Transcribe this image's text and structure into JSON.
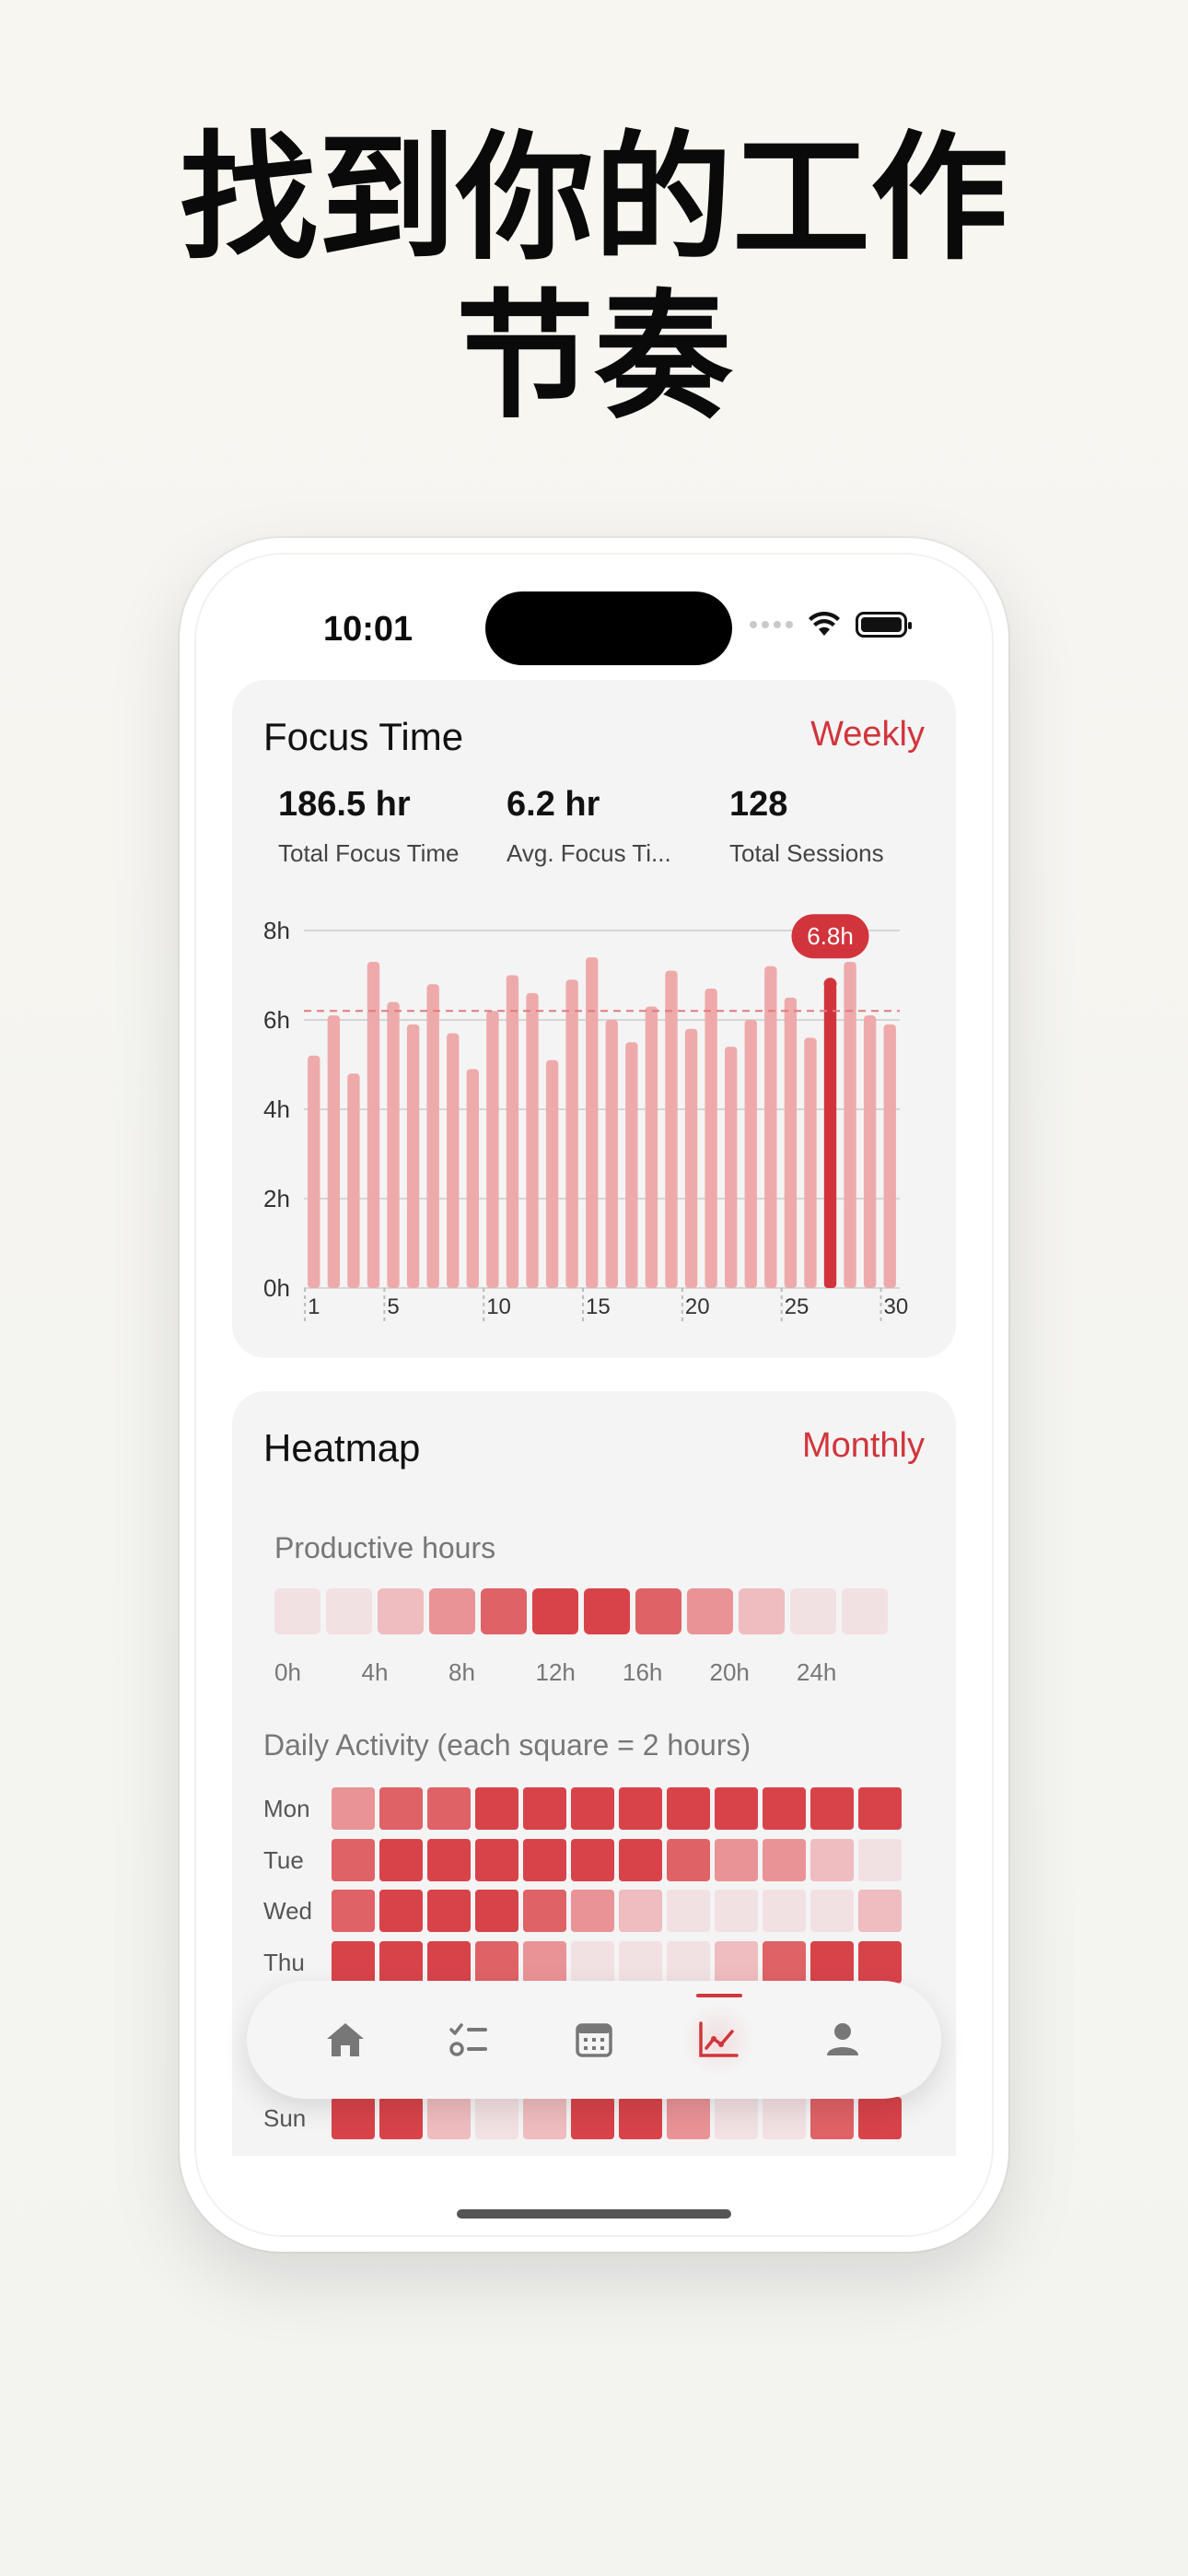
{
  "headline": {
    "line1": "找到你的工作",
    "line2": "节奏"
  },
  "status_bar": {
    "time": "10:01"
  },
  "focus_card": {
    "title": "Focus Time",
    "period": "Weekly",
    "stats": [
      {
        "value": "186.5 hr",
        "label": "Total Focus Time"
      },
      {
        "value": "6.2 hr",
        "label": "Avg. Focus Ti..."
      },
      {
        "value": "128",
        "label": "Total Sessions"
      }
    ],
    "highlight_label": "6.8h",
    "colors": {
      "accent": "#d2343c",
      "bar": "#eeaaaa"
    }
  },
  "chart_data": {
    "type": "bar",
    "x": [
      1,
      2,
      3,
      4,
      5,
      6,
      7,
      8,
      9,
      10,
      11,
      12,
      13,
      14,
      15,
      16,
      17,
      18,
      19,
      20,
      21,
      22,
      23,
      24,
      25,
      26,
      27,
      28,
      29,
      30
    ],
    "values": [
      5.2,
      6.1,
      4.8,
      7.3,
      6.4,
      5.9,
      6.8,
      5.7,
      4.9,
      6.2,
      7.0,
      6.6,
      5.1,
      6.9,
      7.4,
      6.0,
      5.5,
      6.3,
      7.1,
      5.8,
      6.7,
      5.4,
      6.0,
      7.2,
      6.5,
      5.6,
      6.8,
      7.3,
      6.1,
      5.9
    ],
    "highlight_index": 26,
    "average": 6.2,
    "x_tick_labels": [
      "1",
      "5",
      "10",
      "15",
      "20",
      "25",
      "30"
    ],
    "y_tick_labels": [
      "0h",
      "2h",
      "4h",
      "6h",
      "8h"
    ],
    "ylim": [
      0,
      8
    ],
    "grid": true
  },
  "heatmap_card": {
    "title": "Heatmap",
    "period": "Monthly",
    "productive_title": "Productive hours",
    "productive_levels": [
      1,
      1,
      2,
      3,
      4,
      5,
      5,
      4,
      3,
      2,
      1,
      1
    ],
    "productive_labels": [
      "0h",
      "4h",
      "8h",
      "12h",
      "16h",
      "20h",
      "24h"
    ],
    "daily_title": "Daily Activity (each square = 2 hours)",
    "days": [
      {
        "day": "Mon",
        "levels": [
          3,
          4,
          4,
          5,
          5,
          5,
          5,
          5,
          5,
          5,
          5,
          5
        ]
      },
      {
        "day": "Tue",
        "levels": [
          4,
          5,
          5,
          5,
          5,
          5,
          5,
          4,
          3,
          3,
          2,
          1
        ]
      },
      {
        "day": "Wed",
        "levels": [
          4,
          5,
          5,
          5,
          4,
          3,
          2,
          1,
          1,
          1,
          1,
          2
        ]
      },
      {
        "day": "Thu",
        "levels": [
          5,
          5,
          5,
          4,
          3,
          1,
          1,
          1,
          2,
          4,
          5,
          5
        ]
      },
      {
        "day": "Sun",
        "levels": [
          5,
          5,
          2,
          1,
          2,
          5,
          5,
          3,
          1,
          1,
          4,
          5
        ]
      }
    ],
    "level_colors": [
      "#f4f4f4",
      "#f2e1e2",
      "#efbcbf",
      "#e99396",
      "#df6266",
      "#d8434a"
    ]
  },
  "tabbar": {
    "tabs": [
      {
        "icon": "home-icon"
      },
      {
        "icon": "checklist-icon"
      },
      {
        "icon": "calendar-icon"
      },
      {
        "icon": "stats-chart-icon",
        "active": true
      },
      {
        "icon": "profile-icon"
      }
    ]
  }
}
